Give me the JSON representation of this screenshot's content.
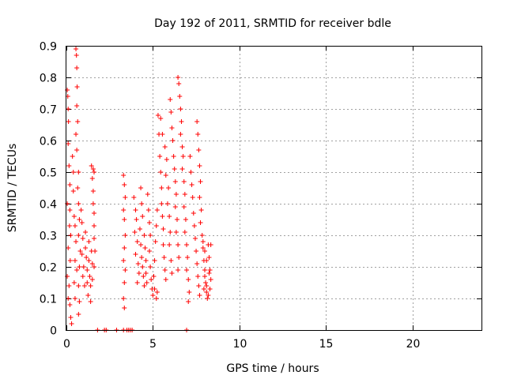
{
  "chart_data": {
    "type": "scatter",
    "title": "Day 192 of 2011, SRMTID for receiver bdle",
    "xlabel": "GPS time / hours",
    "ylabel": "SRMTID / TECUs",
    "xlim": [
      0,
      24
    ],
    "ylim": [
      0,
      0.9
    ],
    "x_ticks": [
      0,
      5,
      10,
      15,
      20
    ],
    "x_tick_labels": [
      "0",
      "5",
      "10",
      "15",
      "20"
    ],
    "y_ticks": [
      0,
      0.1,
      0.2,
      0.3,
      0.4,
      0.5,
      0.6,
      0.7,
      0.8,
      0.9
    ],
    "y_tick_labels": [
      "0",
      "0.1",
      "0.2",
      "0.3",
      "0.4",
      "0.5",
      "0.6",
      "0.7",
      "0.8",
      "0.9"
    ],
    "grid": true,
    "marker": "+",
    "color": "#ff0000",
    "series": [
      {
        "points": [
          [
            0.05,
            0.76
          ],
          [
            0.08,
            0.74
          ],
          [
            0.1,
            0.7
          ],
          [
            0.12,
            0.66
          ],
          [
            0.1,
            0.59
          ],
          [
            0.15,
            0.52
          ],
          [
            0.2,
            0.46
          ],
          [
            0.05,
            0.4
          ],
          [
            0.2,
            0.38
          ],
          [
            0.18,
            0.33
          ],
          [
            0.25,
            0.3
          ],
          [
            0.1,
            0.26
          ],
          [
            0.22,
            0.22
          ],
          [
            0.05,
            0.17
          ],
          [
            0.15,
            0.14
          ],
          [
            0.1,
            0.1
          ],
          [
            0.2,
            0.08
          ],
          [
            0.25,
            0.04
          ],
          [
            0.3,
            0.02
          ],
          [
            0.35,
            0.55
          ],
          [
            0.4,
            0.5
          ],
          [
            0.4,
            0.44
          ],
          [
            0.45,
            0.36
          ],
          [
            0.5,
            0.33
          ],
          [
            0.55,
            0.28
          ],
          [
            0.5,
            0.22
          ],
          [
            0.6,
            0.19
          ],
          [
            0.45,
            0.15
          ],
          [
            0.5,
            0.1
          ],
          [
            0.55,
            0.89
          ],
          [
            0.58,
            0.87
          ],
          [
            0.6,
            0.83
          ],
          [
            0.62,
            0.77
          ],
          [
            0.6,
            0.71
          ],
          [
            0.65,
            0.66
          ],
          [
            0.55,
            0.62
          ],
          [
            0.6,
            0.57
          ],
          [
            0.7,
            0.5
          ],
          [
            0.65,
            0.45
          ],
          [
            0.7,
            0.4
          ],
          [
            0.75,
            0.35
          ],
          [
            0.7,
            0.3
          ],
          [
            0.8,
            0.25
          ],
          [
            0.75,
            0.2
          ],
          [
            0.7,
            0.14
          ],
          [
            0.75,
            0.09
          ],
          [
            0.7,
            0.05
          ],
          [
            0.85,
            0.38
          ],
          [
            0.9,
            0.34
          ],
          [
            0.95,
            0.29
          ],
          [
            0.9,
            0.24
          ],
          [
            1.0,
            0.2
          ],
          [
            0.95,
            0.17
          ],
          [
            1.05,
            0.14
          ],
          [
            1.1,
            0.31
          ],
          [
            1.1,
            0.26
          ],
          [
            1.15,
            0.23
          ],
          [
            1.2,
            0.19
          ],
          [
            1.2,
            0.15
          ],
          [
            1.25,
            0.11
          ],
          [
            1.3,
            0.28
          ],
          [
            1.3,
            0.22
          ],
          [
            1.35,
            0.17
          ],
          [
            1.4,
            0.14
          ],
          [
            1.4,
            0.09
          ],
          [
            1.45,
            0.25
          ],
          [
            1.5,
            0.21
          ],
          [
            1.5,
            0.16
          ],
          [
            1.45,
            0.52
          ],
          [
            1.5,
            0.48
          ],
          [
            1.55,
            0.44
          ],
          [
            1.55,
            0.4
          ],
          [
            1.6,
            0.37
          ],
          [
            1.6,
            0.33
          ],
          [
            1.6,
            0.29
          ],
          [
            1.65,
            0.25
          ],
          [
            1.6,
            0.2
          ],
          [
            1.55,
            0.51
          ],
          [
            1.6,
            0.5
          ],
          [
            1.8,
            0.0
          ],
          [
            2.2,
            0.0
          ],
          [
            2.3,
            0.0
          ],
          [
            2.9,
            0.0
          ],
          [
            3.3,
            0.0
          ],
          [
            3.5,
            0.0
          ],
          [
            3.6,
            0.0
          ],
          [
            3.7,
            0.0
          ],
          [
            3.8,
            0.0
          ],
          [
            6.95,
            0.0
          ],
          [
            3.3,
            0.49
          ],
          [
            3.35,
            0.46
          ],
          [
            3.4,
            0.42
          ],
          [
            3.3,
            0.38
          ],
          [
            3.35,
            0.35
          ],
          [
            3.4,
            0.3
          ],
          [
            3.35,
            0.26
          ],
          [
            3.3,
            0.22
          ],
          [
            3.4,
            0.19
          ],
          [
            3.35,
            0.15
          ],
          [
            3.3,
            0.1
          ],
          [
            3.35,
            0.07
          ],
          [
            3.9,
            0.42
          ],
          [
            4.0,
            0.38
          ],
          [
            4.05,
            0.35
          ],
          [
            3.95,
            0.31
          ],
          [
            4.1,
            0.28
          ],
          [
            4.0,
            0.24
          ],
          [
            4.15,
            0.21
          ],
          [
            4.2,
            0.18
          ],
          [
            4.1,
            0.15
          ],
          [
            4.25,
            0.32
          ],
          [
            4.3,
            0.27
          ],
          [
            4.35,
            0.23
          ],
          [
            4.4,
            0.2
          ],
          [
            4.45,
            0.17
          ],
          [
            4.5,
            0.14
          ],
          [
            4.3,
            0.45
          ],
          [
            4.35,
            0.4
          ],
          [
            4.4,
            0.36
          ],
          [
            4.5,
            0.3
          ],
          [
            4.55,
            0.26
          ],
          [
            4.6,
            0.22
          ],
          [
            4.6,
            0.18
          ],
          [
            4.65,
            0.15
          ],
          [
            4.7,
            0.43
          ],
          [
            4.75,
            0.38
          ],
          [
            4.8,
            0.34
          ],
          [
            4.85,
            0.3
          ],
          [
            4.8,
            0.25
          ],
          [
            4.85,
            0.2
          ],
          [
            4.9,
            0.16
          ],
          [
            4.95,
            0.13
          ],
          [
            5.0,
            0.11
          ],
          [
            5.05,
            0.17
          ],
          [
            5.1,
            0.22
          ],
          [
            5.15,
            0.28
          ],
          [
            5.2,
            0.33
          ],
          [
            5.25,
            0.38
          ],
          [
            5.1,
            0.13
          ],
          [
            5.2,
            0.1
          ],
          [
            5.25,
            0.12
          ],
          [
            5.3,
            0.68
          ],
          [
            5.35,
            0.62
          ],
          [
            5.4,
            0.55
          ],
          [
            5.45,
            0.5
          ],
          [
            5.5,
            0.45
          ],
          [
            5.5,
            0.4
          ],
          [
            5.55,
            0.36
          ],
          [
            5.6,
            0.32
          ],
          [
            5.6,
            0.27
          ],
          [
            5.65,
            0.23
          ],
          [
            5.7,
            0.19
          ],
          [
            5.75,
            0.16
          ],
          [
            5.45,
            0.67
          ],
          [
            5.55,
            0.62
          ],
          [
            5.7,
            0.58
          ],
          [
            5.8,
            0.54
          ],
          [
            5.75,
            0.49
          ],
          [
            5.9,
            0.45
          ],
          [
            5.85,
            0.4
          ],
          [
            5.95,
            0.36
          ],
          [
            6.0,
            0.31
          ],
          [
            5.95,
            0.27
          ],
          [
            6.05,
            0.22
          ],
          [
            6.1,
            0.18
          ],
          [
            6.0,
            0.73
          ],
          [
            6.05,
            0.69
          ],
          [
            6.1,
            0.64
          ],
          [
            6.15,
            0.6
          ],
          [
            6.2,
            0.55
          ],
          [
            6.25,
            0.51
          ],
          [
            6.3,
            0.47
          ],
          [
            6.35,
            0.43
          ],
          [
            6.3,
            0.39
          ],
          [
            6.4,
            0.35
          ],
          [
            6.35,
            0.31
          ],
          [
            6.45,
            0.27
          ],
          [
            6.5,
            0.23
          ],
          [
            6.45,
            0.19
          ],
          [
            6.45,
            0.8
          ],
          [
            6.5,
            0.78
          ],
          [
            6.55,
            0.74
          ],
          [
            6.6,
            0.7
          ],
          [
            6.65,
            0.66
          ],
          [
            6.6,
            0.62
          ],
          [
            6.7,
            0.58
          ],
          [
            6.75,
            0.55
          ],
          [
            6.7,
            0.51
          ],
          [
            6.8,
            0.47
          ],
          [
            6.85,
            0.43
          ],
          [
            6.8,
            0.39
          ],
          [
            6.9,
            0.35
          ],
          [
            6.85,
            0.31
          ],
          [
            6.95,
            0.27
          ],
          [
            7.0,
            0.23
          ],
          [
            6.95,
            0.19
          ],
          [
            7.05,
            0.16
          ],
          [
            7.1,
            0.12
          ],
          [
            7.05,
            0.09
          ],
          [
            7.15,
            0.55
          ],
          [
            7.2,
            0.5
          ],
          [
            7.25,
            0.46
          ],
          [
            7.3,
            0.42
          ],
          [
            7.35,
            0.37
          ],
          [
            7.4,
            0.33
          ],
          [
            7.45,
            0.29
          ],
          [
            7.5,
            0.25
          ],
          [
            7.55,
            0.21
          ],
          [
            7.6,
            0.17
          ],
          [
            7.65,
            0.14
          ],
          [
            7.7,
            0.11
          ],
          [
            7.55,
            0.66
          ],
          [
            7.6,
            0.62
          ],
          [
            7.65,
            0.57
          ],
          [
            7.7,
            0.52
          ],
          [
            7.75,
            0.47
          ],
          [
            7.7,
            0.42
          ],
          [
            7.8,
            0.38
          ],
          [
            7.75,
            0.34
          ],
          [
            7.85,
            0.3
          ],
          [
            7.9,
            0.26
          ],
          [
            7.95,
            0.22
          ],
          [
            8.0,
            0.19
          ],
          [
            8.05,
            0.15
          ],
          [
            8.1,
            0.12
          ],
          [
            7.9,
            0.28
          ],
          [
            8.0,
            0.25
          ],
          [
            8.1,
            0.22
          ],
          [
            8.2,
            0.27
          ],
          [
            8.25,
            0.23
          ],
          [
            8.3,
            0.19
          ],
          [
            8.35,
            0.16
          ],
          [
            8.3,
            0.13
          ],
          [
            8.2,
            0.11
          ],
          [
            8.1,
            0.14
          ],
          [
            8.0,
            0.17
          ],
          [
            7.95,
            0.13
          ],
          [
            8.35,
            0.27
          ],
          [
            8.25,
            0.18
          ],
          [
            8.15,
            0.1
          ]
        ]
      }
    ]
  }
}
